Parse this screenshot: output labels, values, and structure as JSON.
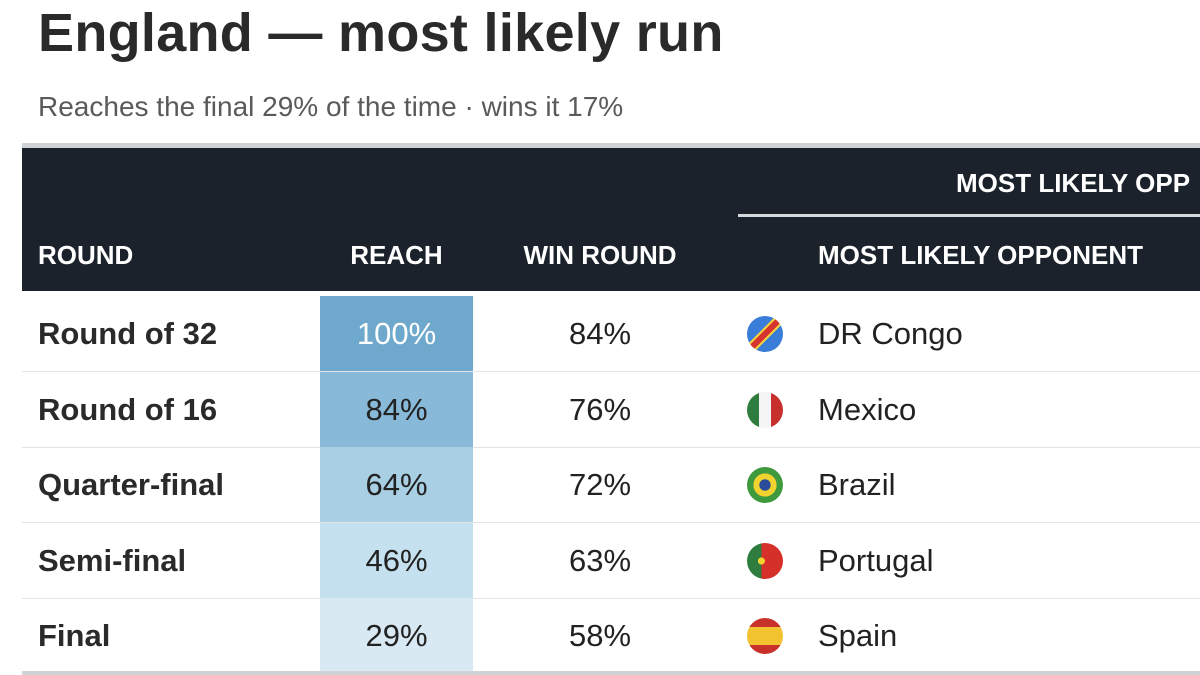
{
  "header": {
    "title": "England — most likely run",
    "subtitle": "Reaches the final 29% of the time · wins it 17%"
  },
  "table": {
    "group_header": "MOST LIKELY OPP",
    "columns": [
      "ROUND",
      "REACH",
      "WIN ROUND",
      "MOST LIKELY OPPONENT"
    ],
    "reach_colors": [
      "#6fa8cd",
      "#88b9d8",
      "#a8cfe3",
      "#c5e0ee",
      "#d9e9f3"
    ],
    "reach_text_colors": [
      "#ffffff",
      "#222222",
      "#222222",
      "#222222",
      "#222222"
    ],
    "rows": [
      [
        "Round of 32",
        "100%",
        "84%",
        "DR Congo"
      ],
      [
        "Round of 16",
        "84%",
        "76%",
        "Mexico"
      ],
      [
        "Quarter-final",
        "64%",
        "72%",
        "Brazil"
      ],
      [
        "Semi-final",
        "46%",
        "63%",
        "Portugal"
      ],
      [
        "Final",
        "29%",
        "58%",
        "Spain"
      ]
    ]
  }
}
